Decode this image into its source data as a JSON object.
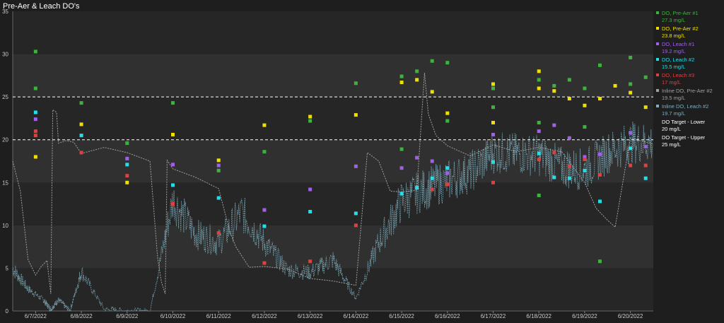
{
  "chart_data": {
    "type": "scatter",
    "title": "Pre-Aer & Leach DO's",
    "xlabel": "",
    "ylabel": "",
    "ylim": [
      0,
      35
    ],
    "yticks": [
      0,
      5,
      10,
      15,
      20,
      25,
      30,
      35
    ],
    "xlim": [
      "2022-06-06T12:00",
      "2022-06-20T12:00"
    ],
    "xticks": [
      "6/7/2022",
      "6/8/2022",
      "6/9/2022",
      "6/10/2022",
      "6/11/2022",
      "6/12/2022",
      "6/13/2022",
      "6/14/2022",
      "6/15/2022",
      "6/16/2022",
      "6/17/2022",
      "6/18/2022",
      "6/19/2022",
      "6/20/2022"
    ],
    "xtick_dates": [
      "2022-06-07",
      "2022-06-08",
      "2022-06-09",
      "2022-06-10",
      "2022-06-11",
      "2022-06-12",
      "2022-06-13",
      "2022-06-14",
      "2022-06-15",
      "2022-06-16",
      "2022-06-17",
      "2022-06-18",
      "2022-06-19",
      "2022-06-20"
    ],
    "grid": "alternating horizontal bands",
    "legend_position": "right",
    "reference_lines": [
      {
        "name": "DO Target - Lower",
        "value_label": "20 mg/L",
        "y": 20,
        "color": "#ffffff"
      },
      {
        "name": "DO Target - Upper",
        "value_label": "25 mg/L",
        "y": 25,
        "color": "#ffffff"
      }
    ],
    "series": [
      {
        "name": "DO, Pre-Aer #1",
        "value_label": "27.3 mg/L",
        "color": "#3cb43c",
        "points": [
          [
            "2022-06-07T00:00",
            30.3
          ],
          [
            "2022-06-07T00:00",
            26
          ],
          [
            "2022-06-08T00:00",
            24.3
          ],
          [
            "2022-06-09T00:00",
            19.6
          ],
          [
            "2022-06-10T00:00",
            24.3
          ],
          [
            "2022-06-11T00:00",
            16.4
          ],
          [
            "2022-06-12T00:00",
            18.6
          ],
          [
            "2022-06-13T00:00",
            22.2
          ],
          [
            "2022-06-14T00:00",
            26.6
          ],
          [
            "2022-06-15T00:00",
            27.4
          ],
          [
            "2022-06-15T00:00",
            18.9
          ],
          [
            "2022-06-15T08:00",
            28
          ],
          [
            "2022-06-15T16:00",
            29.2
          ],
          [
            "2022-06-16T00:00",
            29
          ],
          [
            "2022-06-16T00:00",
            22.2
          ],
          [
            "2022-06-17T00:00",
            26
          ],
          [
            "2022-06-17T00:00",
            23.8
          ],
          [
            "2022-06-18T00:00",
            27
          ],
          [
            "2022-06-18T00:00",
            22
          ],
          [
            "2022-06-18T00:00",
            13.5
          ],
          [
            "2022-06-18T08:00",
            26.3
          ],
          [
            "2022-06-18T16:00",
            27
          ],
          [
            "2022-06-19T00:00",
            26
          ],
          [
            "2022-06-19T00:00",
            21.5
          ],
          [
            "2022-06-19T08:00",
            28.7
          ],
          [
            "2022-06-19T08:00",
            5.8
          ],
          [
            "2022-06-20T00:00",
            29.6
          ],
          [
            "2022-06-20T00:00",
            26.5
          ],
          [
            "2022-06-20T08:00",
            27.3
          ]
        ]
      },
      {
        "name": "DO, Pre-Aer #2",
        "value_label": "23.8 mg/L",
        "color": "#f0e000",
        "points": [
          [
            "2022-06-07T00:00",
            18
          ],
          [
            "2022-06-08T00:00",
            21.8
          ],
          [
            "2022-06-09T00:00",
            15
          ],
          [
            "2022-06-10T00:00",
            20.6
          ],
          [
            "2022-06-11T00:00",
            17.6
          ],
          [
            "2022-06-12T00:00",
            21.7
          ],
          [
            "2022-06-13T00:00",
            22.7
          ],
          [
            "2022-06-14T00:00",
            22.9
          ],
          [
            "2022-06-15T00:00",
            26.7
          ],
          [
            "2022-06-15T08:00",
            27
          ],
          [
            "2022-06-15T16:00",
            25.6
          ],
          [
            "2022-06-16T00:00",
            23.1
          ],
          [
            "2022-06-17T00:00",
            22
          ],
          [
            "2022-06-17T00:00",
            26.5
          ],
          [
            "2022-06-18T00:00",
            28
          ],
          [
            "2022-06-18T00:00",
            26
          ],
          [
            "2022-06-18T08:00",
            25.7
          ],
          [
            "2022-06-18T16:00",
            24.8
          ],
          [
            "2022-06-19T00:00",
            24
          ],
          [
            "2022-06-19T08:00",
            24.8
          ],
          [
            "2022-06-19T16:00",
            26.3
          ],
          [
            "2022-06-20T00:00",
            25.5
          ],
          [
            "2022-06-20T08:00",
            23.8
          ]
        ]
      },
      {
        "name": "DO, Leach #1",
        "value_label": "19.2 mg/L",
        "color": "#a060e8",
        "points": [
          [
            "2022-06-07T00:00",
            22.4
          ],
          [
            "2022-06-09T00:00",
            17.8
          ],
          [
            "2022-06-10T00:00",
            17.1
          ],
          [
            "2022-06-11T00:00",
            17
          ],
          [
            "2022-06-12T00:00",
            11.8
          ],
          [
            "2022-06-13T00:00",
            14.2
          ],
          [
            "2022-06-14T00:00",
            16.9
          ],
          [
            "2022-06-15T00:00",
            16.7
          ],
          [
            "2022-06-15T08:00",
            17.9
          ],
          [
            "2022-06-15T16:00",
            17.5
          ],
          [
            "2022-06-16T00:00",
            16.1
          ],
          [
            "2022-06-17T00:00",
            20.6
          ],
          [
            "2022-06-18T00:00",
            21
          ],
          [
            "2022-06-18T08:00",
            21.7
          ],
          [
            "2022-06-18T16:00",
            20.2
          ],
          [
            "2022-06-19T00:00",
            18
          ],
          [
            "2022-06-19T08:00",
            18.3
          ],
          [
            "2022-06-20T00:00",
            20.8
          ],
          [
            "2022-06-20T08:00",
            19.2
          ]
        ]
      },
      {
        "name": "DO, Leach #2",
        "value_label": "15.5 mg/L",
        "color": "#20e0e8",
        "points": [
          [
            "2022-06-07T00:00",
            23.2
          ],
          [
            "2022-06-08T00:00",
            20.5
          ],
          [
            "2022-06-09T00:00",
            17.1
          ],
          [
            "2022-06-10T00:00",
            14.7
          ],
          [
            "2022-06-11T00:00",
            13.2
          ],
          [
            "2022-06-12T00:00",
            9.9
          ],
          [
            "2022-06-13T00:00",
            11.6
          ],
          [
            "2022-06-14T00:00",
            11.4
          ],
          [
            "2022-06-15T00:00",
            13.7
          ],
          [
            "2022-06-15T08:00",
            14.4
          ],
          [
            "2022-06-15T16:00",
            15.5
          ],
          [
            "2022-06-16T00:00",
            16.7
          ],
          [
            "2022-06-17T00:00",
            17.4
          ],
          [
            "2022-06-18T00:00",
            18.4
          ],
          [
            "2022-06-18T08:00",
            15.6
          ],
          [
            "2022-06-18T16:00",
            15.5
          ],
          [
            "2022-06-19T00:00",
            16.4
          ],
          [
            "2022-06-19T08:00",
            12.8
          ],
          [
            "2022-06-20T00:00",
            19
          ],
          [
            "2022-06-20T08:00",
            15.5
          ]
        ]
      },
      {
        "name": "DO, Leach #3",
        "value_label": "17 mg/L",
        "color": "#e04040",
        "points": [
          [
            "2022-06-07T00:00",
            21
          ],
          [
            "2022-06-07T00:00",
            20.5
          ],
          [
            "2022-06-08T00:00",
            18.5
          ],
          [
            "2022-06-09T00:00",
            15.8
          ],
          [
            "2022-06-10T00:00",
            12.5
          ],
          [
            "2022-06-11T00:00",
            9.1
          ],
          [
            "2022-06-12T00:00",
            5.6
          ],
          [
            "2022-06-13T00:00",
            5.8
          ],
          [
            "2022-06-14T00:00",
            10
          ],
          [
            "2022-06-15T16:00",
            14.2
          ],
          [
            "2022-06-16T00:00",
            14.8
          ],
          [
            "2022-06-17T00:00",
            15
          ],
          [
            "2022-06-18T00:00",
            17.7
          ],
          [
            "2022-06-18T08:00",
            18.5
          ],
          [
            "2022-06-18T16:00",
            16.9
          ],
          [
            "2022-06-19T00:00",
            17.7
          ],
          [
            "2022-06-19T08:00",
            15.9
          ],
          [
            "2022-06-20T00:00",
            17
          ],
          [
            "2022-06-20T08:00",
            17
          ]
        ]
      },
      {
        "name": "Inline DO, Pre-Aer #2",
        "value_label": "19.5 mg/L",
        "color": "#a0a0a0",
        "style": "line",
        "points": [
          [
            "2022-06-06T12:00",
            17.5
          ],
          [
            "2022-06-06T16:00",
            14
          ],
          [
            "2022-06-06T20:00",
            6
          ],
          [
            "2022-06-07T00:00",
            4.2
          ],
          [
            "2022-06-07T03:00",
            5.2
          ],
          [
            "2022-06-07T06:00",
            5.9
          ],
          [
            "2022-06-07T08:00",
            2
          ],
          [
            "2022-06-07T09:00",
            23.5
          ],
          [
            "2022-06-07T11:00",
            23.2
          ],
          [
            "2022-06-07T12:00",
            19.6
          ],
          [
            "2022-06-07T16:00",
            19.9
          ],
          [
            "2022-06-07T20:00",
            19.7
          ],
          [
            "2022-06-08T00:00",
            18.4
          ],
          [
            "2022-06-08T12:00",
            19.1
          ],
          [
            "2022-06-09T00:00",
            18.5
          ],
          [
            "2022-06-09T12:00",
            17.5
          ],
          [
            "2022-06-09T16:00",
            6.2
          ],
          [
            "2022-06-09T18:00",
            3.4
          ],
          [
            "2022-06-09T20:00",
            2
          ],
          [
            "2022-06-09T21:00",
            17.6
          ],
          [
            "2022-06-10T00:00",
            16.6
          ],
          [
            "2022-06-10T12:00",
            15.6
          ],
          [
            "2022-06-11T00:00",
            14.3
          ],
          [
            "2022-06-11T06:00",
            9.2
          ],
          [
            "2022-06-11T09:00",
            7.5
          ],
          [
            "2022-06-11T16:00",
            5.1
          ],
          [
            "2022-06-12T00:00",
            5.2
          ],
          [
            "2022-06-12T12:00",
            4.9
          ],
          [
            "2022-06-13T00:00",
            3.8
          ],
          [
            "2022-06-13T12:00",
            3.5
          ],
          [
            "2022-06-14T00:00",
            3
          ],
          [
            "2022-06-14T06:00",
            18.5
          ],
          [
            "2022-06-14T12:00",
            17.5
          ],
          [
            "2022-06-14T18:00",
            14
          ],
          [
            "2022-06-15T00:00",
            13.9
          ],
          [
            "2022-06-15T08:00",
            14.1
          ],
          [
            "2022-06-15T12:00",
            27.8
          ],
          [
            "2022-06-15T14:00",
            23
          ],
          [
            "2022-06-15T18:00",
            20.5
          ],
          [
            "2022-06-16T00:00",
            19.3
          ],
          [
            "2022-06-16T12:00",
            18.1
          ],
          [
            "2022-06-17T00:00",
            19.4
          ],
          [
            "2022-06-17T12:00",
            18.6
          ],
          [
            "2022-06-18T00:00",
            19.1
          ],
          [
            "2022-06-18T12:00",
            18.6
          ],
          [
            "2022-06-19T00:00",
            15
          ],
          [
            "2022-06-19T06:00",
            12
          ],
          [
            "2022-06-19T12:00",
            10.6
          ],
          [
            "2022-06-19T16:00",
            9.8
          ],
          [
            "2022-06-20T00:00",
            20.2
          ],
          [
            "2022-06-20T12:00",
            19.5
          ]
        ]
      },
      {
        "name": "Inline DO, Leach #2",
        "value_label": "19.7 mg/L",
        "color": "#7fb0c0",
        "style": "line-noisy",
        "points": [
          [
            "2022-06-06T12:00",
            5
          ],
          [
            "2022-06-06T20:00",
            2.6
          ],
          [
            "2022-06-07T04:00",
            1.3
          ],
          [
            "2022-06-07T08:00",
            0.2
          ],
          [
            "2022-06-07T12:00",
            1.3
          ],
          [
            "2022-06-07T18:00",
            0
          ],
          [
            "2022-06-08T00:00",
            4.6
          ],
          [
            "2022-06-08T12:00",
            0.2
          ],
          [
            "2022-06-09T00:00",
            0
          ],
          [
            "2022-06-09T12:00",
            0
          ],
          [
            "2022-06-10T00:00",
            13
          ],
          [
            "2022-06-10T12:00",
            9
          ],
          [
            "2022-06-11T00:00",
            8
          ],
          [
            "2022-06-11T12:00",
            11.5
          ],
          [
            "2022-06-12T00:00",
            8
          ],
          [
            "2022-06-12T12:00",
            4.8
          ],
          [
            "2022-06-13T00:00",
            4.5
          ],
          [
            "2022-06-13T12:00",
            6
          ],
          [
            "2022-06-14T00:00",
            1.5
          ],
          [
            "2022-06-14T12:00",
            8
          ],
          [
            "2022-06-15T00:00",
            12.8
          ],
          [
            "2022-06-15T12:00",
            14.2
          ],
          [
            "2022-06-16T00:00",
            15.2
          ],
          [
            "2022-06-16T12:00",
            16.2
          ],
          [
            "2022-06-17T00:00",
            18.5
          ],
          [
            "2022-06-17T12:00",
            18.4
          ],
          [
            "2022-06-18T00:00",
            18.2
          ],
          [
            "2022-06-18T12:00",
            16.8
          ],
          [
            "2022-06-19T00:00",
            16.5
          ],
          [
            "2022-06-19T12:00",
            18.5
          ],
          [
            "2022-06-20T00:00",
            19.7
          ],
          [
            "2022-06-20T12:00",
            19.7
          ]
        ]
      }
    ]
  }
}
